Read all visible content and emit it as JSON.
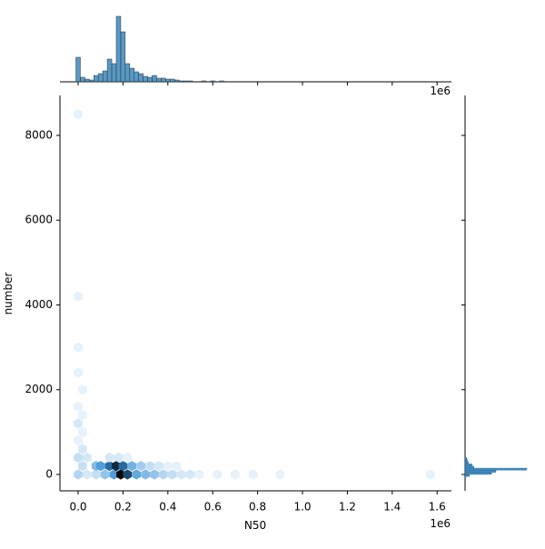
{
  "chart_data": {
    "type": "hexbin",
    "x_label": "N50",
    "y_label": "number",
    "x_offset_text": "1e6",
    "top_offset_text": "1e6",
    "xlim": [
      -0.081,
      1.664
    ],
    "ylim": [
      -386,
      8943
    ],
    "xticks": [
      {
        "value": 0,
        "label": "0.0"
      },
      0.2,
      0.4,
      0.6,
      0.8,
      {
        "value": 1,
        "label": "1.0"
      },
      1.2,
      1.4,
      1.6
    ],
    "yticks": [
      0,
      2000,
      4000,
      6000,
      8000
    ],
    "color": "#1f77b4",
    "hexbins": {
      "x": [
        0.0,
        0.04,
        0.08,
        0.12,
        0.16,
        0.19,
        0.22,
        0.26,
        0.3,
        0.34,
        0.38,
        0.42,
        0.46,
        0.5,
        0.54,
        0.62,
        0.7,
        0.78,
        0.9,
        1.57,
        0.02,
        0.08,
        0.1,
        0.14,
        0.17,
        0.2,
        0.24,
        0.28,
        0.32,
        0.36,
        0.4,
        0.44,
        0.0,
        0.04,
        0.14,
        0.18,
        0.22,
        0.02,
        0.0,
        0.02,
        0.0,
        0.02,
        0.0,
        0.02,
        0.0,
        0.0,
        0.0,
        0.0
      ],
      "y": [
        0,
        0,
        0,
        0,
        0,
        0,
        0,
        0,
        0,
        0,
        0,
        0,
        0,
        0,
        0,
        0,
        0,
        0,
        0,
        0,
        200,
        200,
        200,
        200,
        200,
        200,
        200,
        200,
        200,
        200,
        200,
        200,
        400,
        400,
        400,
        400,
        400,
        600,
        800,
        1000,
        1200,
        1400,
        1600,
        2000,
        2400,
        3000,
        4200,
        8500
      ],
      "counts": [
        4,
        2,
        3,
        6,
        10,
        20,
        16,
        9,
        7,
        6,
        4,
        3,
        2,
        2,
        1,
        1,
        1,
        1,
        1,
        1,
        3,
        7,
        10,
        14,
        18,
        14,
        8,
        5,
        3,
        2,
        1,
        1,
        3,
        2,
        2,
        2,
        1,
        2,
        1,
        1,
        2,
        1,
        1,
        1,
        1,
        1,
        1,
        1
      ]
    },
    "top_hist": {
      "bins": [
        -0.01,
        0.01,
        0.03,
        0.05,
        0.07,
        0.09,
        0.11,
        0.13,
        0.15,
        0.17,
        0.19,
        0.21,
        0.23,
        0.25,
        0.27,
        0.29,
        0.31,
        0.33,
        0.35,
        0.37,
        0.39,
        0.41,
        0.43,
        0.45,
        0.47,
        0.49,
        0.51,
        0.53,
        0.55,
        0.57,
        0.59,
        0.61,
        0.63,
        0.65
      ],
      "counts": [
        27,
        5,
        3,
        2,
        7,
        9,
        12,
        25,
        20,
        72,
        55,
        20,
        15,
        11,
        9,
        6,
        5,
        7,
        4,
        4,
        3,
        3,
        2,
        1,
        1,
        1,
        0,
        0,
        1,
        0,
        1,
        0,
        1
      ]
    },
    "right_hist": {
      "bins": [
        -50,
        0,
        50,
        100,
        150,
        200,
        250,
        300,
        350,
        400
      ],
      "counts": [
        5,
        30,
        35,
        70,
        10,
        8,
        4,
        3,
        2
      ]
    }
  }
}
